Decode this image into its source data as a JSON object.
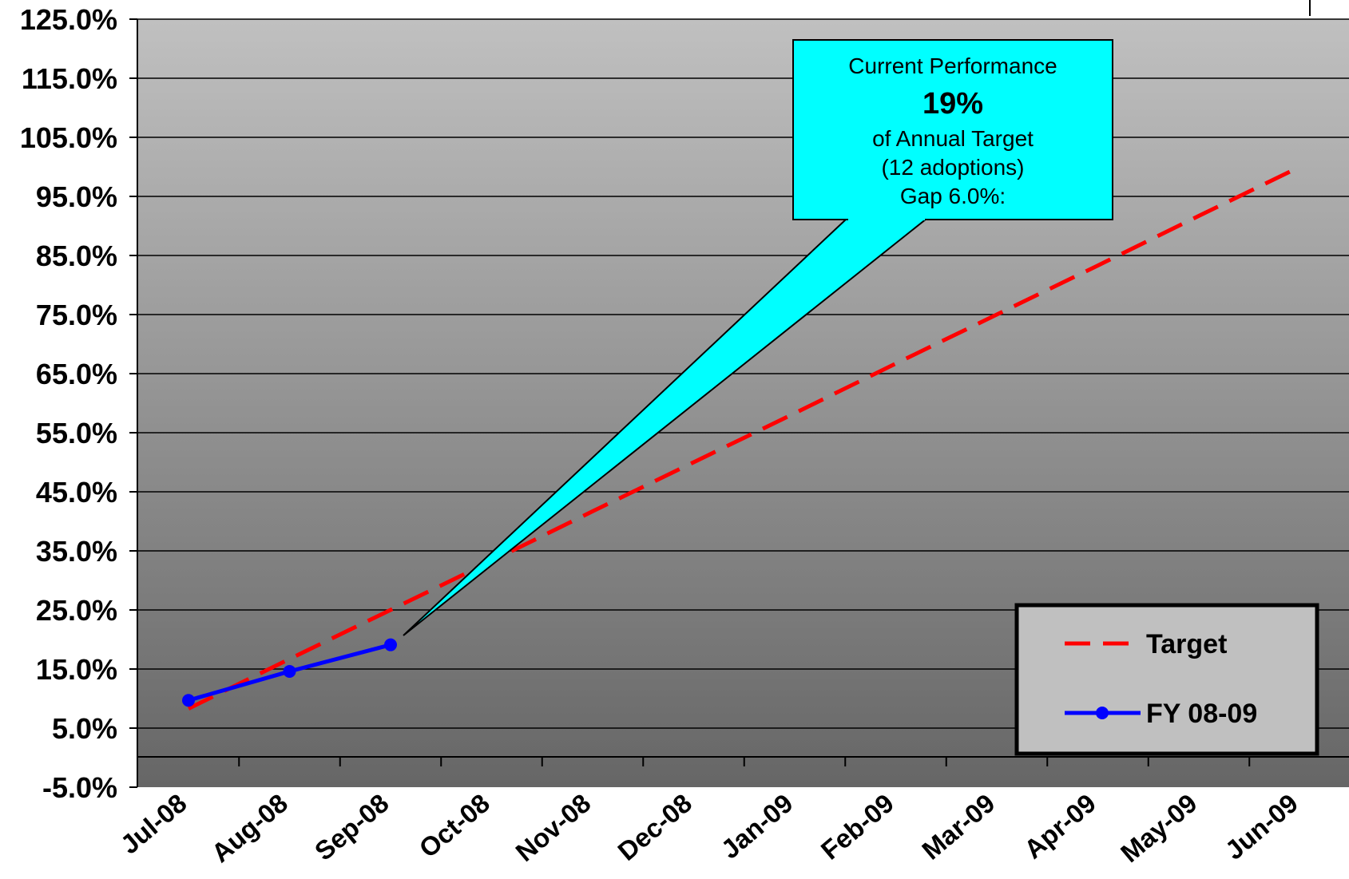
{
  "chart_data": {
    "type": "line",
    "categories": [
      "Jul-08",
      "Aug-08",
      "Sep-08",
      "Oct-08",
      "Nov-08",
      "Dec-08",
      "Jan-09",
      "Feb-09",
      "Mar-09",
      "Apr-09",
      "May-09",
      "Jun-09"
    ],
    "yticks": [
      "-5.0%",
      "5.0%",
      "15.0%",
      "25.0%",
      "35.0%",
      "45.0%",
      "55.0%",
      "65.0%",
      "75.0%",
      "85.0%",
      "95.0%",
      "105.0%",
      "115.0%",
      "125.0%"
    ],
    "ylim": [
      -5,
      125
    ],
    "series": [
      {
        "name": "Target",
        "style": "dashed",
        "color": "#ff0000",
        "values": [
          8.3,
          16.7,
          25.0,
          33.3,
          41.7,
          50.0,
          58.3,
          66.7,
          75.0,
          83.3,
          91.7,
          100.0
        ]
      },
      {
        "name": "FY 08-09",
        "style": "solid-markers",
        "color": "#0000ff",
        "values": [
          9.7,
          14.6,
          19.1,
          null,
          null,
          null,
          null,
          null,
          null,
          null,
          null,
          null
        ]
      }
    ],
    "annotation": {
      "line1": "Current Performance",
      "line2": "19%",
      "line3": "of Annual Target",
      "line4": "(12 adoptions)",
      "line5": "Gap 6.0%:",
      "color": "#00ffff"
    },
    "legend": {
      "placement": "bottom-right"
    },
    "grid": true,
    "plot_background": {
      "top": "#c0c0c0",
      "bottom": "#666666"
    }
  }
}
